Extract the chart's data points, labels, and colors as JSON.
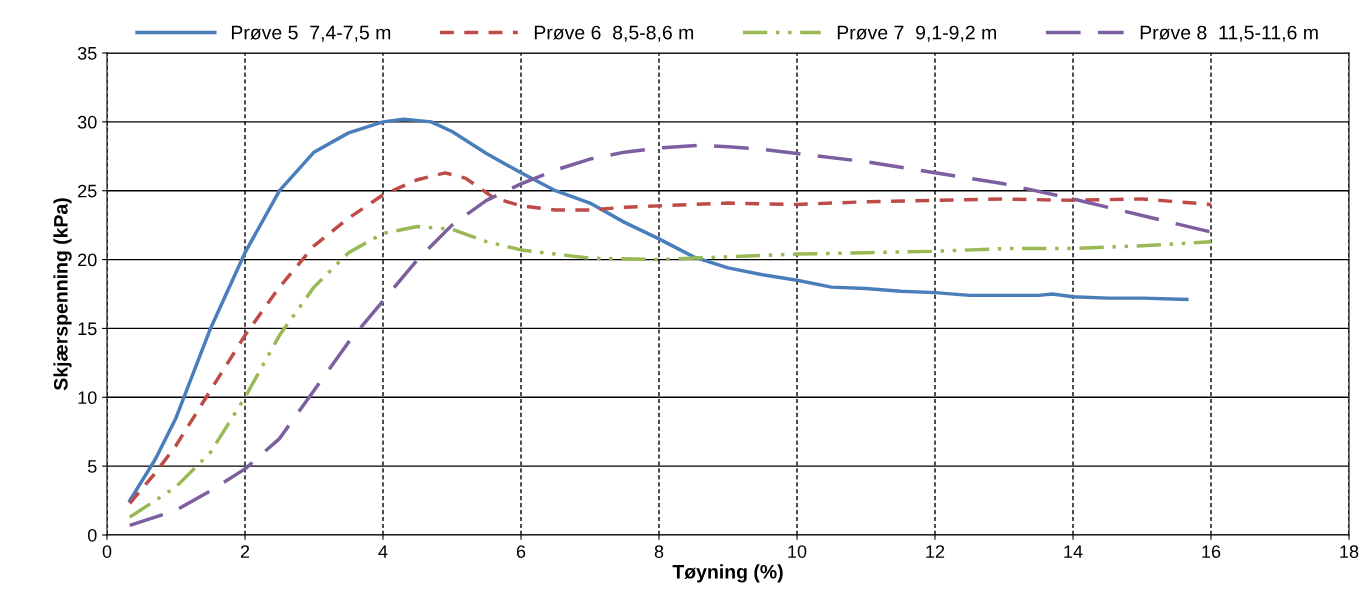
{
  "chart_data": {
    "type": "line",
    "xlabel": "Tøyning (%)",
    "ylabel": "Skjærspenning (kPa)",
    "xlim": [
      0,
      18
    ],
    "xticks": [
      0,
      2,
      4,
      6,
      8,
      10,
      12,
      14,
      16,
      18
    ],
    "ylim": [
      0,
      35
    ],
    "yticks": [
      0,
      5,
      10,
      15,
      20,
      25,
      30,
      35
    ],
    "grid": true,
    "legend": "top",
    "marker": "none",
    "series": [
      {
        "name": "Prøve 5  7,4-7,5 m",
        "color": "#4a7ebb",
        "line_style": "solid",
        "x": [
          0.33,
          0.7,
          1.0,
          1.5,
          2,
          2.5,
          3,
          3.5,
          4,
          4.3,
          4.7,
          5,
          5.5,
          6,
          6.5,
          7,
          7.5,
          8,
          8.5,
          9,
          9.5,
          10,
          10.5,
          11,
          11.5,
          12,
          12.5,
          13,
          13.5,
          13.7,
          14,
          14.5,
          15,
          15.65
        ],
        "values": [
          2.5,
          5.5,
          8.5,
          15,
          20.5,
          25,
          27.8,
          29.2,
          30,
          30.2,
          30,
          29.3,
          27.7,
          26.3,
          25,
          24.1,
          22.7,
          21.5,
          20.2,
          19.4,
          18.9,
          18.5,
          18,
          17.9,
          17.7,
          17.6,
          17.4,
          17.4,
          17.4,
          17.5,
          17.3,
          17.2,
          17.2,
          17.1
        ]
      },
      {
        "name": "Prøve 6  8,5-8,6 m",
        "color": "#be4b48",
        "line_style": "dashed",
        "x": [
          0.33,
          0.7,
          1,
          1.5,
          2,
          2.5,
          3,
          3.5,
          4,
          4.5,
          4.9,
          5.2,
          5.6,
          6,
          6.5,
          7,
          7.5,
          8,
          9,
          10,
          11,
          12,
          13,
          14,
          15,
          16
        ],
        "values": [
          2.3,
          4.5,
          6.5,
          10.5,
          14.5,
          18,
          21,
          23,
          24.7,
          25.8,
          26.3,
          25.9,
          24.5,
          23.9,
          23.6,
          23.6,
          23.8,
          23.9,
          24.1,
          24,
          24.2,
          24.3,
          24.4,
          24.3,
          24.4,
          24
        ]
      },
      {
        "name": "Prøve 7  9,1-9,2 m",
        "color": "#98b954",
        "line_style": "dashdotdot",
        "x": [
          0.33,
          0.7,
          1,
          1.5,
          2,
          2.5,
          3,
          3.5,
          4,
          4.5,
          5,
          5.5,
          6,
          6.5,
          7,
          8,
          9,
          10,
          11,
          12,
          13,
          14,
          15,
          16
        ],
        "values": [
          1.3,
          2.5,
          3.5,
          6,
          10,
          14.5,
          18,
          20.5,
          21.9,
          22.4,
          22.2,
          21.3,
          20.7,
          20.4,
          20.1,
          20,
          20.2,
          20.4,
          20.5,
          20.6,
          20.8,
          20.8,
          21,
          21.3
        ]
      },
      {
        "name": "Prøve 8  11,5-11,6 m",
        "color": "#7d5fa0",
        "line_style": "longdash",
        "x": [
          0.33,
          1,
          1.5,
          2,
          2.5,
          3,
          3.5,
          4,
          4.5,
          5,
          5.5,
          6,
          6.5,
          7,
          7.5,
          8,
          8.6,
          9,
          9.5,
          10,
          11,
          12,
          13,
          14,
          15,
          16
        ],
        "values": [
          0.7,
          1.8,
          3.2,
          4.8,
          7,
          10.5,
          14,
          17,
          20,
          22.5,
          24.3,
          25.5,
          26.5,
          27.3,
          27.8,
          28.1,
          28.3,
          28.2,
          28,
          27.7,
          27.1,
          26.3,
          25.5,
          24.4,
          23.2,
          22
        ]
      }
    ]
  }
}
